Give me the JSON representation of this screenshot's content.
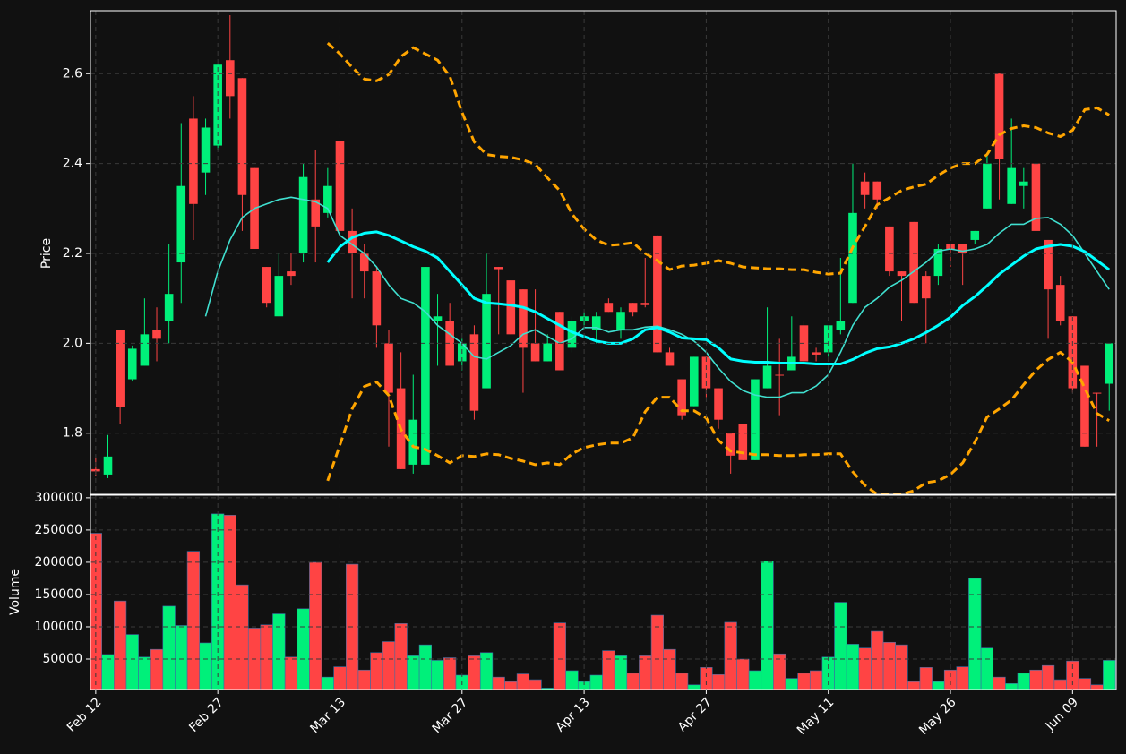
{
  "chart_data": [
    {
      "type": "candlestick",
      "ylabel": "Price",
      "up_color": "#00f07a",
      "down_color": "#ff4444",
      "open": [
        1.72,
        1.708,
        2.03,
        1.92,
        1.95,
        2.03,
        2.05,
        2.18,
        2.5,
        2.38,
        2.44,
        2.63,
        2.59,
        2.39,
        2.17,
        2.06,
        2.16,
        2.2,
        2.32,
        2.29,
        2.45,
        2.25,
        2.2,
        2.16,
        2.0,
        1.9,
        1.73,
        1.73,
        2.05,
        2.05,
        1.96,
        2.02,
        1.9,
        2.17,
        2.14,
        2.12,
        2.0,
        1.96,
        2.07,
        1.99,
        2.05,
        2.03,
        2.09,
        2.03,
        2.09,
        2.09,
        2.24,
        1.98,
        1.92,
        1.86,
        1.97,
        1.9,
        1.8,
        1.82,
        1.74,
        1.9,
        1.93,
        1.94,
        2.04,
        1.98,
        1.98,
        2.03,
        2.09,
        2.36,
        2.36,
        2.26,
        2.16,
        2.27,
        2.15,
        2.15,
        2.22,
        2.22,
        2.23,
        2.3,
        2.6,
        2.31,
        2.35,
        2.4,
        2.23,
        2.13,
        2.06,
        1.95,
        1.89,
        1.91
      ],
      "high": [
        1.745,
        1.796,
        2.03,
        1.995,
        2.1,
        2.08,
        2.22,
        2.49,
        2.55,
        2.5,
        2.62,
        2.73,
        2.59,
        2.39,
        2.17,
        2.2,
        2.2,
        2.4,
        2.43,
        2.39,
        2.45,
        2.3,
        2.22,
        2.17,
        2.03,
        1.98,
        1.93,
        2.17,
        2.11,
        2.09,
        2.01,
        2.04,
        2.2,
        2.17,
        2.14,
        2.12,
        2.12,
        2.02,
        2.07,
        2.06,
        2.07,
        2.07,
        2.1,
        2.08,
        2.09,
        2.19,
        2.24,
        1.99,
        1.92,
        1.97,
        1.97,
        1.9,
        1.8,
        1.82,
        1.92,
        2.08,
        2.01,
        2.06,
        2.05,
        1.99,
        2.04,
        2.19,
        2.4,
        2.38,
        2.36,
        2.26,
        2.16,
        2.27,
        2.16,
        2.22,
        2.22,
        2.22,
        2.25,
        2.42,
        2.6,
        2.5,
        2.39,
        2.4,
        2.23,
        2.15,
        2.06,
        1.95,
        1.89,
        2.0
      ],
      "low": [
        1.705,
        1.7,
        1.82,
        1.915,
        1.95,
        1.96,
        2.0,
        2.09,
        2.23,
        2.33,
        2.43,
        2.5,
        2.25,
        2.21,
        2.08,
        2.06,
        2.13,
        2.18,
        2.18,
        2.28,
        2.2,
        2.1,
        2.1,
        1.99,
        1.77,
        1.72,
        1.71,
        1.73,
        1.95,
        1.95,
        1.94,
        1.83,
        1.9,
        2.02,
        2.02,
        1.89,
        1.96,
        1.96,
        1.94,
        1.98,
        2.03,
        2.0,
        2.07,
        2.01,
        2.06,
        2.08,
        1.98,
        1.95,
        1.83,
        1.86,
        1.88,
        1.81,
        1.71,
        1.74,
        1.74,
        1.9,
        1.84,
        1.94,
        1.95,
        1.96,
        1.97,
        2.02,
        2.09,
        2.3,
        2.3,
        2.15,
        2.05,
        2.09,
        2.0,
        2.13,
        2.17,
        2.13,
        2.22,
        2.3,
        2.32,
        2.31,
        2.3,
        2.25,
        2.01,
        2.04,
        1.89,
        1.77,
        1.77,
        1.85
      ],
      "close": [
        1.715,
        1.748,
        1.858,
        1.988,
        2.02,
        2.01,
        2.11,
        2.35,
        2.31,
        2.48,
        2.62,
        2.55,
        2.33,
        2.21,
        2.09,
        2.15,
        2.15,
        2.37,
        2.26,
        2.35,
        2.25,
        2.2,
        2.16,
        2.04,
        1.89,
        1.72,
        1.83,
        2.17,
        2.06,
        1.95,
        2.0,
        1.85,
        2.11,
        2.165,
        2.02,
        1.99,
        1.96,
        2.0,
        1.94,
        2.05,
        2.06,
        2.06,
        2.07,
        2.07,
        2.07,
        2.085,
        1.98,
        1.95,
        1.84,
        1.97,
        1.9,
        1.83,
        1.75,
        1.74,
        1.92,
        1.95,
        1.928,
        1.97,
        1.96,
        1.975,
        2.04,
        2.05,
        2.29,
        2.33,
        2.32,
        2.16,
        2.15,
        2.09,
        2.1,
        2.21,
        2.21,
        2.2,
        2.25,
        2.4,
        2.41,
        2.39,
        2.36,
        2.25,
        2.12,
        2.05,
        1.9,
        1.77,
        1.888,
        2.0
      ],
      "series": [
        {
          "color": "#40e0d0",
          "width": 1.6,
          "dashed": false,
          "values": [
            null,
            null,
            null,
            null,
            null,
            null,
            null,
            null,
            null,
            2.06,
            2.16,
            2.23,
            2.28,
            2.3,
            2.31,
            2.32,
            2.325,
            2.32,
            2.315,
            2.3,
            2.24,
            2.22,
            2.2,
            2.17,
            2.13,
            2.1,
            2.09,
            2.07,
            2.04,
            2.02,
            2.0,
            1.97,
            1.965,
            1.98,
            1.995,
            2.02,
            2.03,
            2.015,
            2.0,
            2.01,
            2.035,
            2.035,
            2.025,
            2.03,
            2.03,
            2.036,
            2.038,
            2.03,
            2.02,
            2.005,
            1.98,
            1.945,
            1.915,
            1.895,
            1.885,
            1.88,
            1.88,
            1.89,
            1.89,
            1.905,
            1.93,
            1.98,
            2.04,
            2.08,
            2.1,
            2.125,
            2.14,
            2.16,
            2.18,
            2.205,
            2.21,
            2.205,
            2.21,
            2.22,
            2.245,
            2.265,
            2.265,
            2.278,
            2.28,
            2.265,
            2.24,
            2.2,
            2.16,
            2.12
          ]
        },
        {
          "color": "#00ffff",
          "width": 3,
          "dashed": false,
          "values": [
            null,
            null,
            null,
            null,
            null,
            null,
            null,
            null,
            null,
            null,
            null,
            null,
            null,
            null,
            null,
            null,
            null,
            null,
            null,
            2.18,
            2.215,
            2.235,
            2.245,
            2.248,
            2.24,
            2.228,
            2.215,
            2.205,
            2.19,
            2.16,
            2.13,
            2.1,
            2.09,
            2.088,
            2.085,
            2.08,
            2.07,
            2.055,
            2.04,
            2.025,
            2.015,
            2.005,
            2.0,
            2.0,
            2.01,
            2.03,
            2.035,
            2.025,
            2.012,
            2.01,
            2.008,
            1.99,
            1.965,
            1.96,
            1.958,
            1.958,
            1.956,
            1.956,
            1.956,
            1.954,
            1.954,
            1.954,
            1.964,
            1.978,
            1.988,
            1.992,
            2.0,
            2.01,
            2.024,
            2.04,
            2.058,
            2.084,
            2.104,
            2.128,
            2.154,
            2.174,
            2.194,
            2.21,
            2.216,
            2.22,
            2.216,
            2.204,
            2.184,
            2.164
          ]
        },
        {
          "color": "#ffa500",
          "width": 3,
          "dashed": true,
          "values": [
            null,
            null,
            null,
            null,
            null,
            null,
            null,
            null,
            null,
            null,
            null,
            null,
            null,
            null,
            null,
            null,
            null,
            null,
            null,
            2.668,
            2.644,
            2.614,
            2.588,
            2.584,
            2.598,
            2.638,
            2.658,
            2.644,
            2.63,
            2.594,
            2.514,
            2.448,
            2.42,
            2.416,
            2.414,
            2.408,
            2.398,
            2.368,
            2.34,
            2.288,
            2.254,
            2.23,
            2.218,
            2.22,
            2.224,
            2.2,
            2.184,
            2.164,
            2.172,
            2.174,
            2.178,
            2.184,
            2.178,
            2.17,
            2.168,
            2.166,
            2.166,
            2.164,
            2.164,
            2.158,
            2.154,
            2.156,
            2.214,
            2.26,
            2.308,
            2.324,
            2.34,
            2.348,
            2.354,
            2.374,
            2.39,
            2.4,
            2.4,
            2.42,
            2.464,
            2.478,
            2.484,
            2.48,
            2.468,
            2.46,
            2.474,
            2.52,
            2.524,
            2.508
          ]
        },
        {
          "color": "#ffa500",
          "width": 3,
          "dashed": true,
          "values": [
            null,
            null,
            null,
            null,
            null,
            null,
            null,
            null,
            null,
            null,
            null,
            null,
            null,
            null,
            null,
            null,
            null,
            null,
            null,
            1.694,
            1.774,
            1.854,
            1.904,
            1.914,
            1.884,
            1.808,
            1.77,
            1.764,
            1.75,
            1.734,
            1.75,
            1.748,
            1.754,
            1.752,
            1.744,
            1.738,
            1.73,
            1.734,
            1.73,
            1.754,
            1.768,
            1.774,
            1.778,
            1.778,
            1.79,
            1.848,
            1.88,
            1.88,
            1.85,
            1.85,
            1.834,
            1.784,
            1.76,
            1.756,
            1.752,
            1.752,
            1.75,
            1.75,
            1.752,
            1.752,
            1.754,
            1.754,
            1.714,
            1.684,
            1.664,
            1.664,
            1.664,
            1.672,
            1.69,
            1.694,
            1.708,
            1.734,
            1.78,
            1.836,
            1.854,
            1.874,
            1.908,
            1.94,
            1.964,
            1.98,
            1.958,
            1.9,
            1.844,
            1.828
          ]
        }
      ],
      "ylim": [
        1.664,
        2.74
      ],
      "yticks": [
        1.8,
        {
          "value": 2.0,
          "label": "2.0"
        },
        2.2,
        2.4,
        2.6
      ],
      "grid": true
    },
    {
      "type": "bar",
      "ylabel": "Volume",
      "categories": [
        "Feb 12",
        null,
        null,
        null,
        null,
        null,
        null,
        null,
        null,
        null,
        "Feb 27",
        null,
        null,
        null,
        null,
        null,
        null,
        null,
        null,
        null,
        "Mar 13",
        null,
        null,
        null,
        null,
        null,
        null,
        null,
        null,
        null,
        "Mar 27",
        null,
        null,
        null,
        null,
        null,
        null,
        null,
        null,
        null,
        "Apr 13",
        null,
        null,
        null,
        null,
        null,
        null,
        null,
        null,
        null,
        "Apr 27",
        null,
        null,
        null,
        null,
        null,
        null,
        null,
        null,
        null,
        "May 11",
        null,
        null,
        null,
        null,
        null,
        null,
        null,
        null,
        null,
        "May 26",
        null,
        null,
        null,
        null,
        null,
        null,
        null,
        null,
        null,
        "Jun 09",
        null,
        null,
        null
      ],
      "values": [
        245000,
        57000,
        140000,
        88000,
        53000,
        65000,
        132000,
        102000,
        217000,
        75000,
        275000,
        273000,
        165000,
        98000,
        103000,
        120000,
        53000,
        128000,
        200000,
        22000,
        38000,
        197000,
        33000,
        60000,
        77000,
        105000,
        55000,
        72000,
        48000,
        52000,
        25000,
        55000,
        60000,
        22000,
        15000,
        27000,
        18000,
        5000,
        106000,
        32000,
        15000,
        25000,
        63000,
        55000,
        28000,
        55000,
        118000,
        65000,
        28000,
        10000,
        37000,
        26000,
        107000,
        50000,
        32000,
        202000,
        58000,
        20000,
        28000,
        32000,
        53000,
        138000,
        73000,
        67000,
        93000,
        76000,
        72000,
        15000,
        37000,
        15000,
        33000,
        38000,
        175000,
        67000,
        22000,
        12000,
        28000,
        33000,
        40000,
        18000,
        47000,
        20000,
        10000,
        48000
      ],
      "edge_color": "#3a6ea5",
      "ylim": [
        2800,
        304000
      ],
      "yticks": [
        50000,
        100000,
        150000,
        200000,
        250000,
        300000
      ],
      "grid": true
    }
  ]
}
